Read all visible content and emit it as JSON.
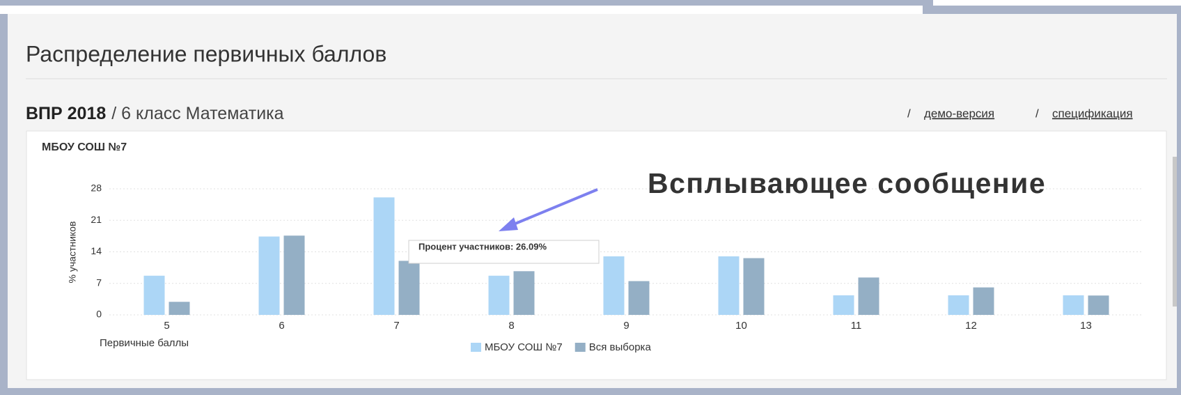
{
  "header": {
    "title": "Распределение первичных баллов",
    "exam": "ВПР 2018",
    "subject": "/ 6 класс Математика",
    "links": [
      "демо-версия",
      "спецификация"
    ]
  },
  "annotation": "Всплывающее сообщение",
  "chart_data": {
    "type": "bar",
    "title": "МБОУ СОШ №7",
    "x_label": "Первичные баллы",
    "y_label": "% участников",
    "categories": [
      "5",
      "6",
      "7",
      "8",
      "9",
      "10",
      "11",
      "12",
      "13"
    ],
    "series": [
      {
        "name": "МБОУ СОШ №7",
        "color": "#acd6f6",
        "values": [
          8.7,
          17.4,
          26.09,
          8.7,
          13.0,
          13.0,
          4.35,
          4.35,
          4.35
        ]
      },
      {
        "name": "Вся выборка",
        "color": "#94afc5",
        "values": [
          2.9,
          17.6,
          12.0,
          9.7,
          7.5,
          12.6,
          8.3,
          6.1,
          4.3
        ]
      }
    ],
    "ylim": [
      0,
      28
    ],
    "yticks": [
      0,
      7,
      14,
      21,
      28
    ],
    "grid": true,
    "tooltip": "Процент участников: 26.09%"
  }
}
